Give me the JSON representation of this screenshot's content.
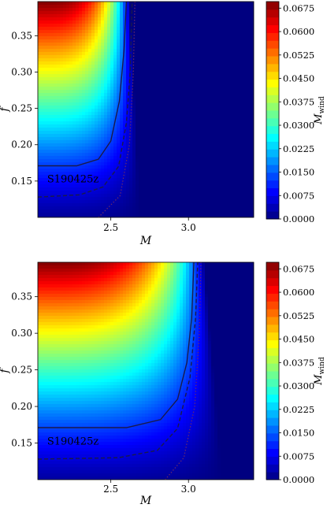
{
  "chart_data": [
    {
      "type": "heatmap",
      "xlabel": "M",
      "ylabel": "f",
      "colorbar_label_main": "M",
      "colorbar_label_sub": "wind",
      "xlim": [
        2.03,
        3.42
      ],
      "ylim": [
        0.1,
        0.397
      ],
      "xticks": [
        2.5,
        3.0
      ],
      "xtick_labels": [
        "2.5",
        "3.0"
      ],
      "yticks": [
        0.15,
        0.2,
        0.25,
        0.3,
        0.35
      ],
      "ytick_labels": [
        "0.15",
        "0.20",
        "0.25",
        "0.30",
        "0.35"
      ],
      "colorbar_range": [
        0.0,
        0.0696
      ],
      "colorbar_ticks": [
        0.0,
        0.0075,
        0.015,
        0.0225,
        0.03,
        0.0375,
        0.045,
        0.0525,
        0.06,
        0.0675
      ],
      "colorbar_tick_labels": [
        "0.0000",
        "0.0075",
        "0.0150",
        "0.0225",
        "0.0300",
        "0.0375",
        "0.0450",
        "0.0525",
        "0.0600",
        "0.0675"
      ],
      "colormap": "jet",
      "annotation": "S190425z",
      "field": {
        "m_cut_low_f": 2.69,
        "m_cut_high_f": 2.62,
        "max_value": 0.0696,
        "f_floor": 0.08
      },
      "contours": [
        {
          "style": "solid",
          "color": "#1a1a4a",
          "points": [
            [
              2.03,
              0.171
            ],
            [
              2.28,
              0.171
            ],
            [
              2.42,
              0.18
            ],
            [
              2.5,
              0.205
            ],
            [
              2.555,
              0.26
            ],
            [
              2.585,
              0.33
            ],
            [
              2.6,
              0.397
            ]
          ]
        },
        {
          "style": "dashed",
          "color": "#1a1a4a",
          "points": [
            [
              2.03,
              0.128
            ],
            [
              2.3,
              0.131
            ],
            [
              2.45,
              0.142
            ],
            [
              2.55,
              0.17
            ],
            [
              2.6,
              0.23
            ],
            [
              2.625,
              0.3
            ],
            [
              2.637,
              0.397
            ]
          ]
        },
        {
          "style": "dotted",
          "color": "#6a2a6a",
          "points": [
            [
              2.42,
              0.1
            ],
            [
              2.56,
              0.13
            ],
            [
              2.62,
              0.2
            ],
            [
              2.645,
              0.3
            ],
            [
              2.655,
              0.397
            ]
          ]
        }
      ]
    },
    {
      "type": "heatmap",
      "xlabel": "M",
      "ylabel": "f",
      "colorbar_label_main": "M",
      "colorbar_label_sub": "wind",
      "xlim": [
        2.03,
        3.42
      ],
      "ylim": [
        0.1,
        0.397
      ],
      "xticks": [
        2.5,
        3.0
      ],
      "xtick_labels": [
        "2.5",
        "3.0"
      ],
      "yticks": [
        0.15,
        0.2,
        0.25,
        0.3,
        0.35
      ],
      "ytick_labels": [
        "0.15",
        "0.20",
        "0.25",
        "0.30",
        "0.35"
      ],
      "colorbar_range": [
        0.0,
        0.0696
      ],
      "colorbar_ticks": [
        0.0,
        0.0075,
        0.015,
        0.0225,
        0.03,
        0.0375,
        0.045,
        0.0525,
        0.06,
        0.0675
      ],
      "colorbar_tick_labels": [
        "0.0000",
        "0.0075",
        "0.0150",
        "0.0225",
        "0.0300",
        "0.0375",
        "0.0450",
        "0.0525",
        "0.0600",
        "0.0675"
      ],
      "colormap": "jet",
      "annotation": "S190425z",
      "field": {
        "m_cut_low_f": 3.22,
        "m_cut_high_f": 3.1,
        "max_value": 0.0696,
        "f_floor": 0.075
      },
      "contours": [
        {
          "style": "solid",
          "color": "#1a1a4a",
          "points": [
            [
              2.03,
              0.171
            ],
            [
              2.6,
              0.171
            ],
            [
              2.82,
              0.182
            ],
            [
              2.93,
              0.21
            ],
            [
              2.99,
              0.26
            ],
            [
              3.02,
              0.32
            ],
            [
              3.035,
              0.397
            ]
          ]
        },
        {
          "style": "dashed",
          "color": "#1a1a4a",
          "points": [
            [
              2.03,
              0.128
            ],
            [
              2.55,
              0.13
            ],
            [
              2.8,
              0.14
            ],
            [
              2.93,
              0.17
            ],
            [
              3.01,
              0.24
            ],
            [
              3.045,
              0.32
            ],
            [
              3.06,
              0.397
            ]
          ]
        },
        {
          "style": "dotted",
          "color": "#6a2a6a",
          "points": [
            [
              2.85,
              0.1
            ],
            [
              2.97,
              0.13
            ],
            [
              3.04,
              0.2
            ],
            [
              3.07,
              0.3
            ],
            [
              3.08,
              0.397
            ]
          ]
        }
      ]
    }
  ]
}
